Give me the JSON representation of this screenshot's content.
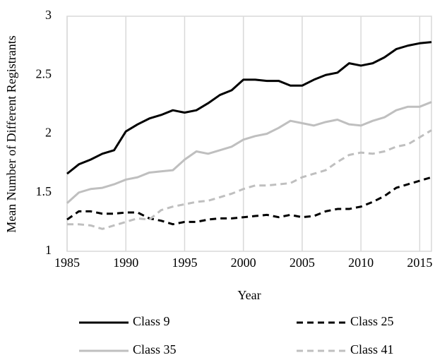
{
  "chart_data": {
    "type": "line",
    "x_label": "Year",
    "y_label": "Mean Number of Different Registrants",
    "x": [
      1985,
      1986,
      1987,
      1988,
      1989,
      1990,
      1991,
      1992,
      1993,
      1994,
      1995,
      1996,
      1997,
      1998,
      1999,
      2000,
      2001,
      2002,
      2003,
      2004,
      2005,
      2006,
      2007,
      2008,
      2009,
      2010,
      2011,
      2012,
      2013,
      2014,
      2015,
      2016
    ],
    "series": [
      {
        "name": "Class 9",
        "color": "#000000",
        "style": "solid",
        "values": [
          1.66,
          1.74,
          1.78,
          1.83,
          1.86,
          2.02,
          2.08,
          2.13,
          2.16,
          2.2,
          2.18,
          2.2,
          2.26,
          2.33,
          2.37,
          2.46,
          2.46,
          2.45,
          2.45,
          2.41,
          2.41,
          2.46,
          2.5,
          2.52,
          2.6,
          2.58,
          2.6,
          2.65,
          2.72,
          2.75,
          2.77,
          2.78
        ]
      },
      {
        "name": "Class 25",
        "color": "#000000",
        "style": "dashed",
        "values": [
          1.27,
          1.34,
          1.34,
          1.32,
          1.32,
          1.33,
          1.33,
          1.28,
          1.26,
          1.23,
          1.25,
          1.25,
          1.27,
          1.28,
          1.28,
          1.29,
          1.3,
          1.31,
          1.29,
          1.31,
          1.29,
          1.3,
          1.34,
          1.36,
          1.36,
          1.38,
          1.42,
          1.47,
          1.54,
          1.57,
          1.6,
          1.63
        ]
      },
      {
        "name": "Class 35",
        "color": "#bfbfbf",
        "style": "solid",
        "values": [
          1.41,
          1.5,
          1.53,
          1.54,
          1.57,
          1.61,
          1.63,
          1.67,
          1.68,
          1.69,
          1.78,
          1.85,
          1.83,
          1.86,
          1.89,
          1.95,
          1.98,
          2.0,
          2.05,
          2.11,
          2.09,
          2.07,
          2.1,
          2.12,
          2.08,
          2.07,
          2.11,
          2.14,
          2.2,
          2.23,
          2.23,
          2.27
        ]
      },
      {
        "name": "Class 41",
        "color": "#bfbfbf",
        "style": "dashed",
        "values": [
          1.23,
          1.23,
          1.22,
          1.19,
          1.22,
          1.25,
          1.28,
          1.27,
          1.35,
          1.38,
          1.4,
          1.42,
          1.43,
          1.46,
          1.49,
          1.53,
          1.56,
          1.56,
          1.57,
          1.58,
          1.63,
          1.66,
          1.69,
          1.76,
          1.82,
          1.84,
          1.83,
          1.85,
          1.89,
          1.91,
          1.97,
          2.03
        ]
      }
    ],
    "xlim": [
      1985,
      2016
    ],
    "xticks": [
      1985,
      1990,
      1995,
      2000,
      2005,
      2010,
      2015
    ],
    "ylim": [
      1,
      3
    ],
    "yticks": [
      1,
      1.5,
      2,
      2.5,
      3
    ],
    "grid": "x",
    "legend": "bottom"
  }
}
